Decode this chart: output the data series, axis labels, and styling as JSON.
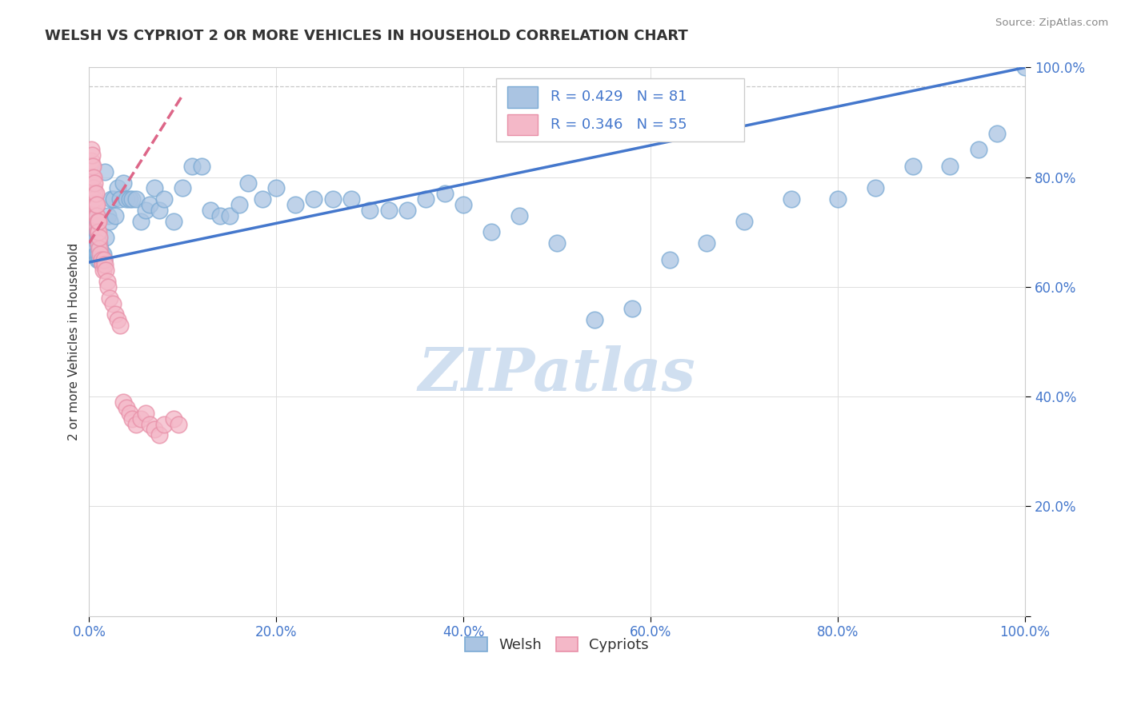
{
  "title": "WELSH VS CYPRIOT 2 OR MORE VEHICLES IN HOUSEHOLD CORRELATION CHART",
  "source": "Source: ZipAtlas.com",
  "ylabel": "2 or more Vehicles in Household",
  "xlim": [
    0,
    1
  ],
  "ylim": [
    0,
    1
  ],
  "xticks": [
    0.0,
    0.2,
    0.4,
    0.6,
    0.8,
    1.0
  ],
  "yticks": [
    0.0,
    0.2,
    0.4,
    0.6,
    0.8,
    1.0
  ],
  "xticklabels": [
    "0.0%",
    "20.0%",
    "40.0%",
    "60.0%",
    "80.0%",
    "100.0%"
  ],
  "yticklabels": [
    "",
    "20.0%",
    "40.0%",
    "60.0%",
    "80.0%",
    "100.0%"
  ],
  "welsh_color": "#aac4e2",
  "welsh_edge_color": "#7aaad4",
  "cypriot_color": "#f4b8c8",
  "cypriot_edge_color": "#e890a8",
  "trend_welsh_color": "#4477cc",
  "trend_cypriot_color": "#dd6688",
  "trend_cypriot_dash": true,
  "legend_welsh_R": 0.429,
  "legend_welsh_N": 81,
  "legend_cypriot_R": 0.346,
  "legend_cypriot_N": 55,
  "watermark": "ZIPatlas",
  "watermark_color": "#d0dff0",
  "welsh_x": [
    0.004,
    0.004,
    0.004,
    0.005,
    0.005,
    0.005,
    0.006,
    0.006,
    0.006,
    0.007,
    0.007,
    0.007,
    0.008,
    0.008,
    0.009,
    0.009,
    0.01,
    0.01,
    0.011,
    0.011,
    0.012,
    0.013,
    0.015,
    0.016,
    0.017,
    0.018,
    0.02,
    0.022,
    0.024,
    0.026,
    0.028,
    0.03,
    0.033,
    0.036,
    0.04,
    0.043,
    0.046,
    0.05,
    0.055,
    0.06,
    0.065,
    0.07,
    0.075,
    0.08,
    0.09,
    0.1,
    0.11,
    0.12,
    0.13,
    0.14,
    0.15,
    0.16,
    0.17,
    0.185,
    0.2,
    0.22,
    0.24,
    0.26,
    0.28,
    0.3,
    0.32,
    0.34,
    0.36,
    0.38,
    0.4,
    0.43,
    0.46,
    0.5,
    0.54,
    0.58,
    0.62,
    0.66,
    0.7,
    0.75,
    0.8,
    0.84,
    0.88,
    0.92,
    0.95,
    0.97,
    1.0
  ],
  "welsh_y": [
    0.7,
    0.72,
    0.74,
    0.68,
    0.71,
    0.73,
    0.67,
    0.7,
    0.72,
    0.66,
    0.69,
    0.71,
    0.66,
    0.7,
    0.65,
    0.68,
    0.66,
    0.69,
    0.65,
    0.68,
    0.67,
    0.66,
    0.66,
    0.65,
    0.81,
    0.69,
    0.73,
    0.72,
    0.76,
    0.76,
    0.73,
    0.78,
    0.76,
    0.79,
    0.76,
    0.76,
    0.76,
    0.76,
    0.72,
    0.74,
    0.75,
    0.78,
    0.74,
    0.76,
    0.72,
    0.78,
    0.82,
    0.82,
    0.74,
    0.73,
    0.73,
    0.75,
    0.79,
    0.76,
    0.78,
    0.75,
    0.76,
    0.76,
    0.76,
    0.74,
    0.74,
    0.74,
    0.76,
    0.77,
    0.75,
    0.7,
    0.73,
    0.68,
    0.54,
    0.56,
    0.65,
    0.68,
    0.72,
    0.76,
    0.76,
    0.78,
    0.82,
    0.82,
    0.85,
    0.88,
    1.0
  ],
  "cypriot_x": [
    0.002,
    0.002,
    0.003,
    0.003,
    0.003,
    0.004,
    0.004,
    0.004,
    0.005,
    0.005,
    0.005,
    0.006,
    0.006,
    0.006,
    0.006,
    0.007,
    0.007,
    0.007,
    0.008,
    0.008,
    0.008,
    0.009,
    0.009,
    0.01,
    0.01,
    0.01,
    0.011,
    0.011,
    0.012,
    0.013,
    0.014,
    0.015,
    0.016,
    0.017,
    0.018,
    0.019,
    0.02,
    0.022,
    0.025,
    0.028,
    0.03,
    0.033,
    0.036,
    0.04,
    0.043,
    0.046,
    0.05,
    0.055,
    0.06,
    0.065,
    0.07,
    0.075,
    0.08,
    0.09,
    0.095
  ],
  "cypriot_y": [
    0.83,
    0.85,
    0.8,
    0.82,
    0.84,
    0.78,
    0.8,
    0.82,
    0.76,
    0.78,
    0.8,
    0.75,
    0.76,
    0.77,
    0.79,
    0.73,
    0.75,
    0.77,
    0.71,
    0.73,
    0.75,
    0.7,
    0.72,
    0.68,
    0.7,
    0.72,
    0.67,
    0.69,
    0.66,
    0.65,
    0.64,
    0.63,
    0.65,
    0.64,
    0.63,
    0.61,
    0.6,
    0.58,
    0.57,
    0.55,
    0.54,
    0.53,
    0.39,
    0.38,
    0.37,
    0.36,
    0.35,
    0.36,
    0.37,
    0.35,
    0.34,
    0.33,
    0.35,
    0.36,
    0.35
  ]
}
